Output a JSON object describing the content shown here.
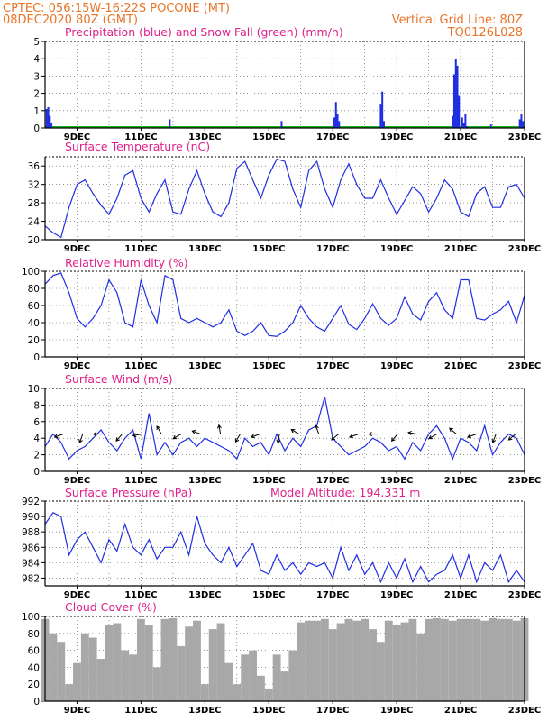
{
  "header": {
    "line1_left": "CPTEC:   056:15W-16:22S   POCONE (MT)",
    "line2_left": "08DEC2020 80Z (GMT)",
    "line2_right": "Vertical Grid Line: 80Z",
    "line3_right": "TQ0126L028"
  },
  "colors": {
    "header": "#e8752a",
    "panel_title": "#e0208a",
    "series": "#1f2ee0",
    "snow": "#17b317",
    "cloud": "#a8a8a8"
  },
  "chart_data": [
    {
      "type": "bar",
      "title": "Precipitation (blue) and Snow Fall (green) (mm/h)",
      "ylim": [
        0,
        5
      ],
      "yticks": [
        0,
        1,
        2,
        3,
        4,
        5
      ],
      "xticks": [
        "9DEC",
        "11DEC",
        "13DEC",
        "15DEC",
        "17DEC",
        "19DEC",
        "21DEC",
        "23DEC"
      ],
      "x_range_days": [
        8,
        23
      ],
      "series": [
        {
          "name": "Precipitation",
          "x": [
            8.05,
            8.1,
            8.15,
            8.2,
            11.9,
            15.4,
            17.05,
            17.1,
            17.15,
            17.2,
            18.5,
            18.55,
            18.6,
            20.75,
            20.8,
            20.85,
            20.9,
            20.95,
            21.05,
            21.1,
            21.15,
            21.2,
            21.95,
            22.85,
            22.9,
            22.95
          ],
          "values": [
            1.1,
            1.2,
            0.7,
            0.3,
            0.5,
            0.4,
            0.6,
            1.5,
            0.8,
            0.4,
            1.4,
            2.1,
            0.4,
            0.7,
            3.1,
            4.0,
            3.6,
            1.9,
            0.6,
            0.3,
            0.8,
            0.1,
            0.2,
            0.5,
            0.8,
            0.4
          ]
        },
        {
          "name": "Snow Fall",
          "x": [
            8,
            23
          ],
          "values": [
            0.05,
            0.05
          ]
        }
      ]
    },
    {
      "type": "line",
      "title": "Surface Temperature (nC)",
      "ylim": [
        20,
        38
      ],
      "yticks": [
        20,
        24,
        28,
        32,
        36
      ],
      "xticks": [
        "9DEC",
        "11DEC",
        "13DEC",
        "15DEC",
        "17DEC",
        "19DEC",
        "21DEC",
        "23DEC"
      ],
      "x": [
        8.0,
        8.25,
        8.5,
        8.75,
        9.0,
        9.25,
        9.5,
        9.75,
        10.0,
        10.25,
        10.5,
        10.75,
        11.0,
        11.25,
        11.5,
        11.75,
        12.0,
        12.25,
        12.5,
        12.75,
        13.0,
        13.25,
        13.5,
        13.75,
        14.0,
        14.25,
        14.5,
        14.75,
        15.0,
        15.25,
        15.5,
        15.75,
        16.0,
        16.25,
        16.5,
        16.75,
        17.0,
        17.25,
        17.5,
        17.75,
        18.0,
        18.25,
        18.5,
        18.75,
        19.0,
        19.25,
        19.5,
        19.75,
        20.0,
        20.25,
        20.5,
        20.75,
        21.0,
        21.25,
        21.5,
        21.75,
        22.0,
        22.25,
        22.5,
        22.75,
        23.0
      ],
      "values": [
        23,
        21.5,
        20.5,
        27,
        32,
        33,
        30,
        27.5,
        25.5,
        29,
        34,
        35,
        29,
        26,
        30,
        33,
        26,
        25.5,
        31,
        35,
        30,
        26,
        25,
        28,
        35.5,
        37,
        33,
        29,
        34,
        37.5,
        37,
        31,
        27,
        35,
        37,
        31,
        27,
        33,
        36.5,
        32,
        29,
        29,
        33,
        29,
        25.5,
        28.5,
        31.5,
        30,
        26,
        29,
        33,
        31,
        26,
        25,
        30,
        31.5,
        27,
        27,
        31.5,
        32,
        29
      ]
    },
    {
      "type": "line",
      "title": "Relative Humidity (%)",
      "ylim": [
        0,
        100
      ],
      "yticks": [
        0,
        20,
        40,
        60,
        80,
        100
      ],
      "xticks": [
        "9DEC",
        "11DEC",
        "13DEC",
        "15DEC",
        "17DEC",
        "19DEC",
        "21DEC",
        "23DEC"
      ],
      "x": [
        8.0,
        8.25,
        8.5,
        8.75,
        9.0,
        9.25,
        9.5,
        9.75,
        10.0,
        10.25,
        10.5,
        10.75,
        11.0,
        11.25,
        11.5,
        11.75,
        12.0,
        12.25,
        12.5,
        12.75,
        13.0,
        13.25,
        13.5,
        13.75,
        14.0,
        14.25,
        14.5,
        14.75,
        15.0,
        15.25,
        15.5,
        15.75,
        16.0,
        16.25,
        16.5,
        16.75,
        17.0,
        17.25,
        17.5,
        17.75,
        18.0,
        18.25,
        18.5,
        18.75,
        19.0,
        19.25,
        19.5,
        19.75,
        20.0,
        20.25,
        20.5,
        20.75,
        21.0,
        21.25,
        21.5,
        21.75,
        22.0,
        22.25,
        22.5,
        22.75,
        23.0
      ],
      "values": [
        85,
        95,
        98,
        75,
        45,
        35,
        45,
        60,
        90,
        75,
        40,
        35,
        90,
        60,
        40,
        95,
        90,
        45,
        40,
        45,
        40,
        35,
        40,
        55,
        30,
        25,
        30,
        40,
        25,
        24,
        30,
        40,
        60,
        45,
        35,
        30,
        45,
        60,
        38,
        32,
        45,
        62,
        45,
        37,
        45,
        70,
        50,
        43,
        65,
        75,
        55,
        45,
        90,
        90,
        45,
        43,
        50,
        55,
        65,
        40,
        72
      ]
    },
    {
      "type": "line",
      "title": "Surface Wind (m/s)",
      "ylim": [
        0,
        10
      ],
      "yticks": [
        0,
        2,
        4,
        6,
        8,
        10
      ],
      "xticks": [
        "9DEC",
        "11DEC",
        "13DEC",
        "15DEC",
        "17DEC",
        "19DEC",
        "21DEC",
        "23DEC"
      ],
      "x": [
        8.0,
        8.25,
        8.5,
        8.75,
        9.0,
        9.25,
        9.5,
        9.75,
        10.0,
        10.25,
        10.5,
        10.75,
        11.0,
        11.25,
        11.5,
        11.75,
        12.0,
        12.25,
        12.5,
        12.75,
        13.0,
        13.25,
        13.5,
        13.75,
        14.0,
        14.25,
        14.5,
        14.75,
        15.0,
        15.25,
        15.5,
        15.75,
        16.0,
        16.25,
        16.5,
        16.75,
        17.0,
        17.25,
        17.5,
        17.75,
        18.0,
        18.25,
        18.5,
        18.75,
        19.0,
        19.25,
        19.5,
        19.75,
        20.0,
        20.25,
        20.5,
        20.75,
        21.0,
        21.25,
        21.5,
        21.75,
        22.0,
        22.25,
        22.5,
        22.75,
        23.0
      ],
      "values": [
        3,
        4.5,
        3.5,
        1.5,
        2.5,
        3,
        4,
        5,
        3.5,
        2.5,
        4,
        5,
        1.5,
        7,
        2,
        3.5,
        2,
        3.5,
        4,
        3,
        4,
        3.5,
        3,
        2.5,
        1.5,
        4,
        3,
        3.5,
        2,
        4.5,
        2.5,
        4,
        3,
        5,
        5.5,
        9,
        4,
        3,
        2,
        2.5,
        3,
        4,
        3.5,
        2.5,
        3,
        1.5,
        3.5,
        2.5,
        4.5,
        5.5,
        4,
        1.5,
        4,
        3.5,
        2.5,
        5.5,
        2,
        3.5,
        4.5,
        4,
        2
      ],
      "wind_barbs_count": 24
    },
    {
      "type": "line",
      "title": "Surface Pressure (hPa)",
      "annotation": "Model Altitude: 194.331 m",
      "ylim": [
        981,
        992
      ],
      "yticks": [
        982,
        984,
        986,
        988,
        990,
        992
      ],
      "xticks": [
        "9DEC",
        "11DEC",
        "13DEC",
        "15DEC",
        "17DEC",
        "19DEC",
        "21DEC",
        "23DEC"
      ],
      "x": [
        8.0,
        8.25,
        8.5,
        8.75,
        9.0,
        9.25,
        9.5,
        9.75,
        10.0,
        10.25,
        10.5,
        10.75,
        11.0,
        11.25,
        11.5,
        11.75,
        12.0,
        12.25,
        12.5,
        12.75,
        13.0,
        13.25,
        13.5,
        13.75,
        14.0,
        14.25,
        14.5,
        14.75,
        15.0,
        15.25,
        15.5,
        15.75,
        16.0,
        16.25,
        16.5,
        16.75,
        17.0,
        17.25,
        17.5,
        17.75,
        18.0,
        18.25,
        18.5,
        18.75,
        19.0,
        19.25,
        19.5,
        19.75,
        20.0,
        20.25,
        20.5,
        20.75,
        21.0,
        21.25,
        21.5,
        21.75,
        22.0,
        22.25,
        22.5,
        22.75,
        23.0
      ],
      "values": [
        989,
        990.5,
        990,
        985,
        987,
        988,
        986,
        984,
        987,
        985.5,
        989,
        986,
        985,
        987,
        984.5,
        986,
        986,
        988,
        985,
        990,
        986.5,
        985,
        984,
        986,
        983.5,
        985,
        986.5,
        983,
        982.5,
        985,
        983,
        984,
        982.5,
        984,
        983.5,
        984,
        982,
        986,
        983,
        985,
        982.5,
        984,
        981.5,
        984,
        982,
        984.5,
        981.5,
        983.5,
        981.5,
        982.5,
        983,
        985,
        982,
        985,
        981.5,
        984,
        983,
        985,
        981.5,
        983,
        981.5
      ]
    },
    {
      "type": "bar",
      "title": "Cloud Cover (%)",
      "ylim": [
        0,
        100
      ],
      "yticks": [
        0,
        20,
        40,
        60,
        80,
        100
      ],
      "xticks": [
        "9DEC",
        "11DEC",
        "13DEC",
        "15DEC",
        "17DEC",
        "19DEC",
        "21DEC",
        "23DEC"
      ],
      "x": [
        8.0,
        8.25,
        8.5,
        8.75,
        9.0,
        9.25,
        9.5,
        9.75,
        10.0,
        10.25,
        10.5,
        10.75,
        11.0,
        11.25,
        11.5,
        11.75,
        12.0,
        12.25,
        12.5,
        12.75,
        13.0,
        13.25,
        13.5,
        13.75,
        14.0,
        14.25,
        14.5,
        14.75,
        15.0,
        15.25,
        15.5,
        15.75,
        16.0,
        16.25,
        16.5,
        16.75,
        17.0,
        17.25,
        17.5,
        17.75,
        18.0,
        18.25,
        18.5,
        18.75,
        19.0,
        19.25,
        19.5,
        19.75,
        20.0,
        20.25,
        20.5,
        20.75,
        21.0,
        21.25,
        21.5,
        21.75,
        22.0,
        22.25,
        22.5,
        22.75,
        23.0
      ],
      "values": [
        97,
        80,
        70,
        20,
        45,
        80,
        75,
        50,
        90,
        92,
        60,
        55,
        97,
        90,
        40,
        97,
        98,
        65,
        88,
        95,
        20,
        85,
        92,
        45,
        20,
        55,
        60,
        30,
        15,
        55,
        35,
        60,
        93,
        95,
        95,
        97,
        85,
        92,
        97,
        95,
        97,
        85,
        70,
        95,
        90,
        93,
        97,
        80,
        97,
        98,
        97,
        95,
        97,
        97,
        97,
        95,
        98,
        97,
        97,
        95,
        98
      ]
    }
  ]
}
